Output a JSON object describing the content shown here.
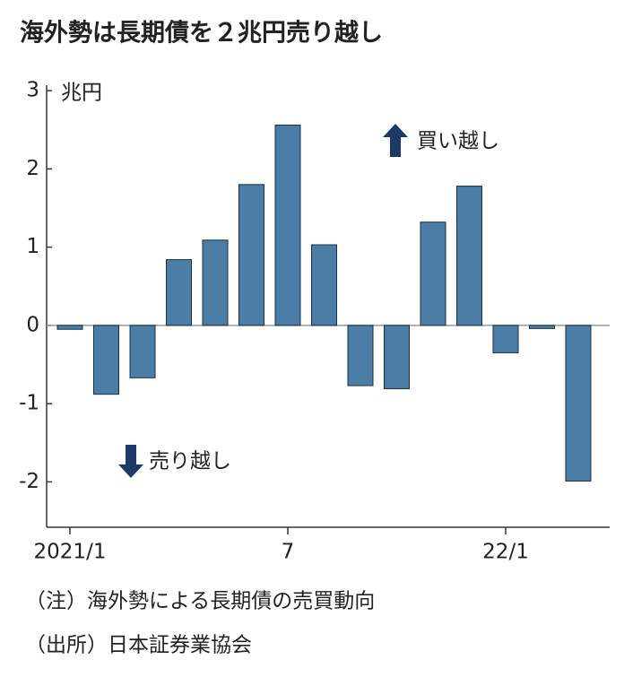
{
  "chart_data": {
    "type": "bar",
    "title": "海外勢は長期債を２兆円売り越し",
    "y_unit": "兆円",
    "annotations": [
      "買い越し",
      "売り越し"
    ],
    "notes": [
      "（注）海外勢による長期債の売買動向",
      "（出所）日本証券業協会"
    ],
    "categories": [
      "2021/1",
      null,
      null,
      null,
      null,
      null,
      "7",
      null,
      null,
      null,
      null,
      null,
      "22/1",
      null,
      null
    ],
    "values": [
      -0.05,
      -0.88,
      -0.67,
      0.84,
      1.09,
      1.8,
      2.56,
      1.03,
      -0.77,
      -0.81,
      1.32,
      1.78,
      -0.35,
      -0.04,
      -1.99
    ],
    "color": "#4b7ea6",
    "ylim": [
      -2.58,
      3.07
    ],
    "yticks": [
      -2,
      -1,
      0,
      1,
      2,
      3
    ]
  }
}
